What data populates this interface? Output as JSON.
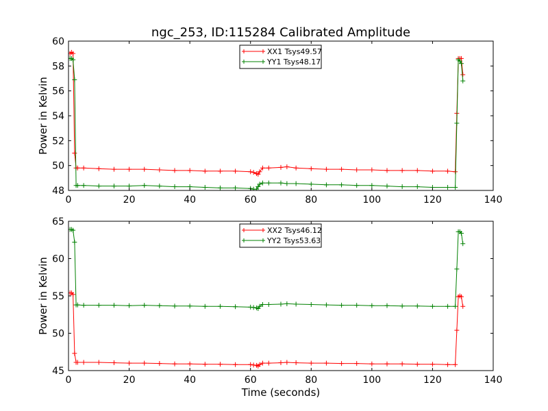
{
  "chart_data": [
    {
      "type": "line",
      "title": "ngc_253, ID:115284 Calibrated Amplitude",
      "xlabel": "",
      "ylabel": "Power in Kelvin",
      "xlim": [
        0,
        140
      ],
      "ylim": [
        48,
        60
      ],
      "xticks": [
        0,
        20,
        40,
        60,
        80,
        100,
        120,
        140
      ],
      "xtick_labels": [
        "0",
        "20",
        "40",
        "60",
        "80",
        "100",
        "120",
        "140"
      ],
      "yticks": [
        48,
        50,
        52,
        54,
        56,
        58,
        60
      ],
      "ytick_labels": [
        "48",
        "50",
        "52",
        "54",
        "56",
        "58",
        "60"
      ],
      "grid": false,
      "legend_position": "top-center",
      "series": [
        {
          "name": "XX1 Tsys49.57",
          "color": "#ff0000",
          "marker": "+",
          "x": [
            0.5,
            1.0,
            1.5,
            2.0,
            2.5,
            3,
            5,
            10,
            15,
            20,
            25,
            30,
            35,
            40,
            45,
            50,
            55,
            60,
            61,
            62,
            62.5,
            63,
            64,
            66,
            70,
            72,
            75,
            80,
            85,
            90,
            95,
            100,
            105,
            110,
            115,
            120,
            125,
            127.5,
            128,
            128.5,
            129,
            129.5,
            130
          ],
          "y": [
            59.0,
            59.1,
            59.0,
            51.0,
            49.8,
            49.8,
            49.8,
            49.75,
            49.7,
            49.7,
            49.7,
            49.65,
            49.6,
            49.6,
            49.55,
            49.55,
            49.55,
            49.5,
            49.45,
            49.35,
            49.3,
            49.5,
            49.8,
            49.8,
            49.85,
            49.9,
            49.8,
            49.75,
            49.7,
            49.7,
            49.65,
            49.65,
            49.6,
            49.6,
            49.6,
            49.55,
            49.55,
            49.5,
            54.2,
            58.6,
            58.6,
            58.6,
            57.3
          ]
        },
        {
          "name": "YY1 Tsys48.17",
          "color": "#008000",
          "marker": "+",
          "x": [
            0.5,
            1.0,
            1.5,
            2.0,
            2.5,
            3,
            5,
            10,
            15,
            20,
            25,
            30,
            35,
            40,
            45,
            50,
            55,
            60,
            61,
            62,
            62.5,
            63,
            64,
            66,
            70,
            72,
            75,
            80,
            85,
            90,
            95,
            100,
            105,
            110,
            115,
            120,
            125,
            127.5,
            128,
            128.5,
            129,
            129.5,
            130
          ],
          "y": [
            58.6,
            58.6,
            58.5,
            56.9,
            48.4,
            48.4,
            48.4,
            48.35,
            48.35,
            48.35,
            48.4,
            48.35,
            48.3,
            48.3,
            48.25,
            48.2,
            48.2,
            48.15,
            48.1,
            48.1,
            48.3,
            48.5,
            48.6,
            48.6,
            48.6,
            48.55,
            48.55,
            48.5,
            48.45,
            48.45,
            48.4,
            48.4,
            48.35,
            48.3,
            48.3,
            48.25,
            48.25,
            48.25,
            53.4,
            58.5,
            58.4,
            58.2,
            56.8
          ]
        }
      ]
    },
    {
      "type": "line",
      "title": "",
      "xlabel": "Time (seconds)",
      "ylabel": "Power in Kelvin",
      "xlim": [
        0,
        140
      ],
      "ylim": [
        45,
        65
      ],
      "xticks": [
        0,
        20,
        40,
        60,
        80,
        100,
        120,
        140
      ],
      "xtick_labels": [
        "0",
        "20",
        "40",
        "60",
        "80",
        "100",
        "120",
        "140"
      ],
      "yticks": [
        45,
        50,
        55,
        60,
        65
      ],
      "ytick_labels": [
        "45",
        "50",
        "55",
        "60",
        "65"
      ],
      "grid": false,
      "legend_position": "top-center",
      "series": [
        {
          "name": "XX2 Tsys46.12",
          "color": "#ff0000",
          "marker": "+",
          "x": [
            0.5,
            1.0,
            1.5,
            2.0,
            2.5,
            3,
            5,
            10,
            15,
            20,
            25,
            30,
            35,
            40,
            45,
            50,
            55,
            60,
            61,
            62,
            62.5,
            63,
            64,
            66,
            70,
            72,
            75,
            80,
            85,
            90,
            95,
            100,
            105,
            110,
            115,
            120,
            125,
            127.5,
            128,
            128.5,
            129,
            129.5,
            130
          ],
          "y": [
            55.4,
            55.4,
            55.2,
            47.3,
            46.1,
            46.1,
            46.1,
            46.1,
            46.05,
            46.0,
            46.0,
            45.95,
            45.9,
            45.9,
            45.85,
            45.85,
            45.8,
            45.8,
            45.75,
            45.7,
            45.6,
            45.8,
            46.0,
            46.0,
            46.05,
            46.1,
            46.05,
            46.0,
            46.0,
            45.95,
            45.95,
            45.9,
            45.9,
            45.9,
            45.85,
            45.85,
            45.8,
            45.8,
            50.4,
            54.9,
            55.0,
            54.9,
            53.6
          ]
        },
        {
          "name": "YY2 Tsys53.63",
          "color": "#008000",
          "marker": "+",
          "x": [
            0.5,
            1.0,
            1.5,
            2.0,
            2.5,
            3,
            5,
            10,
            15,
            20,
            25,
            30,
            35,
            40,
            45,
            50,
            55,
            60,
            61,
            62,
            62.5,
            63,
            64,
            66,
            70,
            72,
            75,
            80,
            85,
            90,
            95,
            100,
            105,
            110,
            115,
            120,
            125,
            127.5,
            128,
            128.5,
            129,
            129.5,
            130
          ],
          "y": [
            63.9,
            63.9,
            63.8,
            62.2,
            53.8,
            53.8,
            53.75,
            53.75,
            53.75,
            53.7,
            53.75,
            53.7,
            53.65,
            53.65,
            53.6,
            53.6,
            53.55,
            53.5,
            53.45,
            53.4,
            53.3,
            53.6,
            53.85,
            53.85,
            53.9,
            53.95,
            53.9,
            53.85,
            53.8,
            53.75,
            53.75,
            53.7,
            53.7,
            53.65,
            53.65,
            53.6,
            53.6,
            53.6,
            58.6,
            63.6,
            63.6,
            63.4,
            62.0
          ]
        }
      ]
    }
  ]
}
